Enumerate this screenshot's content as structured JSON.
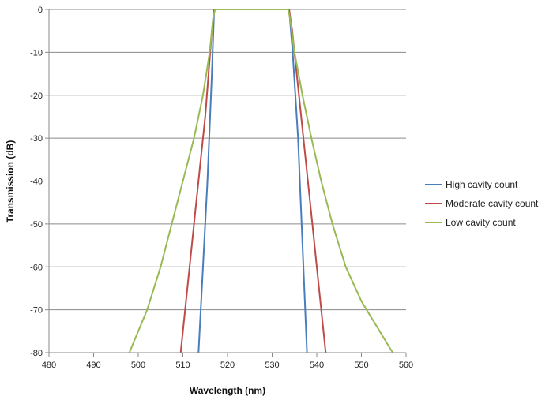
{
  "chart_data": {
    "type": "line",
    "xlabel": "Wavelength (nm)",
    "ylabel": "Transmission (dB)",
    "xlim": [
      480,
      560
    ],
    "ylim": [
      -80,
      0
    ],
    "xticks": [
      480,
      490,
      500,
      510,
      520,
      530,
      540,
      550,
      560
    ],
    "yticks": [
      0,
      -10,
      -20,
      -30,
      -40,
      -50,
      -60,
      -70,
      -80
    ],
    "xtick_labels": [
      "480",
      "490",
      "500",
      "510",
      "520",
      "530",
      "540",
      "550",
      "560"
    ],
    "ytick_labels": [
      "0",
      "-10",
      "-20",
      "-30",
      "-40",
      "-50",
      "-60",
      "-70",
      "-80"
    ],
    "grid": "horizontal",
    "legend_position": "right",
    "series": [
      {
        "name": "High cavity count",
        "color": "#4a7ebb",
        "points": [
          [
            513.5,
            -80
          ],
          [
            515.5,
            -40
          ],
          [
            516.5,
            -15
          ],
          [
            517.0,
            0
          ],
          [
            533.8,
            0
          ],
          [
            534.6,
            -10
          ],
          [
            535.8,
            -30
          ],
          [
            537.8,
            -80
          ]
        ]
      },
      {
        "name": "Moderate cavity count",
        "color": "#be4b48",
        "points": [
          [
            509.5,
            -80
          ],
          [
            511.5,
            -60
          ],
          [
            513.0,
            -45
          ],
          [
            515.0,
            -25
          ],
          [
            516.5,
            -5
          ],
          [
            517.0,
            0
          ],
          [
            533.8,
            0
          ],
          [
            534.5,
            -5
          ],
          [
            535.5,
            -15
          ],
          [
            537.0,
            -30
          ],
          [
            539.0,
            -50
          ],
          [
            540.5,
            -65
          ],
          [
            542.0,
            -80
          ]
        ]
      },
      {
        "name": "Low cavity count",
        "color": "#98b954",
        "points": [
          [
            498.0,
            -80
          ],
          [
            502.0,
            -70
          ],
          [
            505.0,
            -60
          ],
          [
            507.5,
            -50
          ],
          [
            510.0,
            -40
          ],
          [
            512.5,
            -30
          ],
          [
            514.5,
            -20
          ],
          [
            516.0,
            -10
          ],
          [
            516.8,
            -2
          ],
          [
            517.2,
            0
          ],
          [
            533.6,
            0
          ],
          [
            534.0,
            -2
          ],
          [
            535.0,
            -10
          ],
          [
            536.8,
            -20
          ],
          [
            538.8,
            -30
          ],
          [
            541.0,
            -40
          ],
          [
            543.5,
            -50
          ],
          [
            546.5,
            -60
          ],
          [
            550.0,
            -68
          ],
          [
            553.5,
            -74
          ],
          [
            557.0,
            -80
          ]
        ]
      }
    ]
  }
}
